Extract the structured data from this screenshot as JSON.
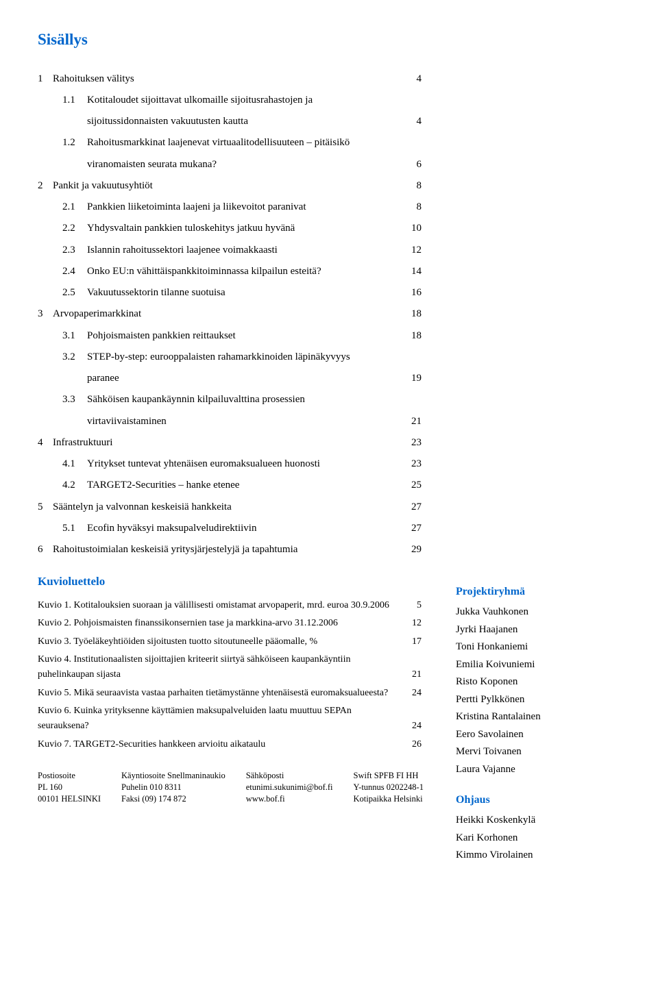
{
  "title": "Sisällys",
  "toc": [
    {
      "num": "1",
      "sub": "",
      "text": "Rahoituksen välitys",
      "page": "4",
      "level": 0
    },
    {
      "num": "",
      "sub": "1.1",
      "text": "Kotitaloudet sijoittavat ulkomaille sijoitusrahastojen ja",
      "page": "",
      "level": 1
    },
    {
      "num": "",
      "sub": "",
      "text": "sijoitussidonnaisten vakuutusten kautta",
      "page": "4",
      "level": 2
    },
    {
      "num": "",
      "sub": "1.2",
      "text": "Rahoitusmarkkinat laajenevat virtuaalitodellisuuteen – pitäisikö",
      "page": "",
      "level": 1
    },
    {
      "num": "",
      "sub": "",
      "text": "viranomaisten seurata mukana?",
      "page": "6",
      "level": 2
    },
    {
      "num": "2",
      "sub": "",
      "text": "Pankit ja vakuutusyhtiöt",
      "page": "8",
      "level": 0
    },
    {
      "num": "",
      "sub": "2.1",
      "text": "Pankkien liiketoiminta laajeni ja liikevoitot paranivat",
      "page": "8",
      "level": 1
    },
    {
      "num": "",
      "sub": "2.2",
      "text": "Yhdysvaltain pankkien tuloskehitys jatkuu hyvänä",
      "page": "10",
      "level": 1
    },
    {
      "num": "",
      "sub": "2.3",
      "text": "Islannin rahoitussektori laajenee voimakkaasti",
      "page": "12",
      "level": 1
    },
    {
      "num": "",
      "sub": "2.4",
      "text": "Onko EU:n vähittäispankkitoiminnassa kilpailun esteitä?",
      "page": "14",
      "level": 1
    },
    {
      "num": "",
      "sub": "2.5",
      "text": "Vakuutussektorin tilanne suotuisa",
      "page": "16",
      "level": 1
    },
    {
      "num": "3",
      "sub": "",
      "text": "Arvopaperimarkkinat",
      "page": "18",
      "level": 0
    },
    {
      "num": "",
      "sub": "3.1",
      "text": "Pohjoismaisten pankkien reittaukset",
      "page": "18",
      "level": 1
    },
    {
      "num": "",
      "sub": "3.2",
      "text": "STEP-by-step: eurooppalaisten rahamarkkinoiden läpinäkyvyys",
      "page": "",
      "level": 1
    },
    {
      "num": "",
      "sub": "",
      "text": "paranee",
      "page": "19",
      "level": 2
    },
    {
      "num": "",
      "sub": "3.3",
      "text": "Sähköisen kaupankäynnin kilpailuvalttina prosessien",
      "page": "",
      "level": 1
    },
    {
      "num": "",
      "sub": "",
      "text": "virtaviivaistaminen",
      "page": "21",
      "level": 2
    },
    {
      "num": "4",
      "sub": "",
      "text": "Infrastruktuuri",
      "page": "23",
      "level": 0
    },
    {
      "num": "",
      "sub": "4.1",
      "text": "Yritykset tuntevat yhtenäisen euromaksualueen huonosti",
      "page": "23",
      "level": 1
    },
    {
      "num": "",
      "sub": "4.2",
      "text": "TARGET2-Securities – hanke etenee",
      "page": "25",
      "level": 1
    },
    {
      "num": "5",
      "sub": "",
      "text": "Sääntelyn ja valvonnan keskeisiä hankkeita",
      "page": "27",
      "level": 0
    },
    {
      "num": "",
      "sub": "5.1",
      "text": "Ecofin hyväksyi maksupalveludirektiivin",
      "page": "27",
      "level": 1
    },
    {
      "num": "6",
      "sub": "",
      "text": "Rahoitustoimialan keskeisiä yritysjärjestelyjä ja tapahtumia",
      "page": "29",
      "level": 0
    }
  ],
  "figlist_title": "Kuvioluettelo",
  "figs": [
    {
      "text": "Kuvio 1. Kotitalouksien suoraan ja välillisesti omistamat arvopaperit, mrd. euroa 30.9.2006",
      "page": "5"
    },
    {
      "text": "Kuvio 2. Pohjoismaisten finanssikonsernien tase ja markkina-arvo 31.12.2006",
      "page": "12"
    },
    {
      "text": "Kuvio 3. Työeläkeyhtiöiden sijoitusten tuotto sitoutuneelle pääomalle, %",
      "page": "17"
    },
    {
      "text": "Kuvio 4. Institutionaalisten sijoittajien kriteerit siirtyä sähköiseen kaupankäyntiin puhelinkaupan sijasta",
      "page": "21"
    },
    {
      "text": "Kuvio 5. Mikä seuraavista vastaa parhaiten tietämystänne yhtenäisestä euromaksualueesta?",
      "page": "24"
    },
    {
      "text": "Kuvio 6. Kuinka yrityksenne käyttämien maksupalveluiden laatu muuttuu SEPAn seurauksena?",
      "page": "24"
    },
    {
      "text": "Kuvio 7. TARGET2-Securities hankkeen arvioitu aikataulu",
      "page": "26"
    }
  ],
  "sidebar": {
    "team_head": "Projektiryhmä",
    "team": [
      "Jukka Vauhkonen",
      "Jyrki Haajanen",
      "Toni Honkaniemi",
      "Emilia Koivuniemi",
      "Risto Koponen",
      "Pertti Pylkkönen",
      "Kristina Rantalainen",
      "Eero Savolainen",
      "Mervi Toivanen",
      "Laura Vajanne"
    ],
    "ohjaus_head": "Ohjaus",
    "ohjaus": [
      "Heikki Koskenkylä",
      "Kari Korhonen",
      "Kimmo Virolainen"
    ]
  },
  "footer": {
    "col1": "Postiosoite\nPL 160\n00101 HELSINKI",
    "col2": "Käyntiosoite Snellmaninaukio\nPuhelin 010 8311\nFaksi (09) 174 872",
    "col3": "Sähköposti\netunimi.sukunimi@bof.fi\nwww.bof.fi",
    "col4": "Swift SPFB FI HH\nY-tunnus 0202248-1\nKotipaikka Helsinki"
  }
}
